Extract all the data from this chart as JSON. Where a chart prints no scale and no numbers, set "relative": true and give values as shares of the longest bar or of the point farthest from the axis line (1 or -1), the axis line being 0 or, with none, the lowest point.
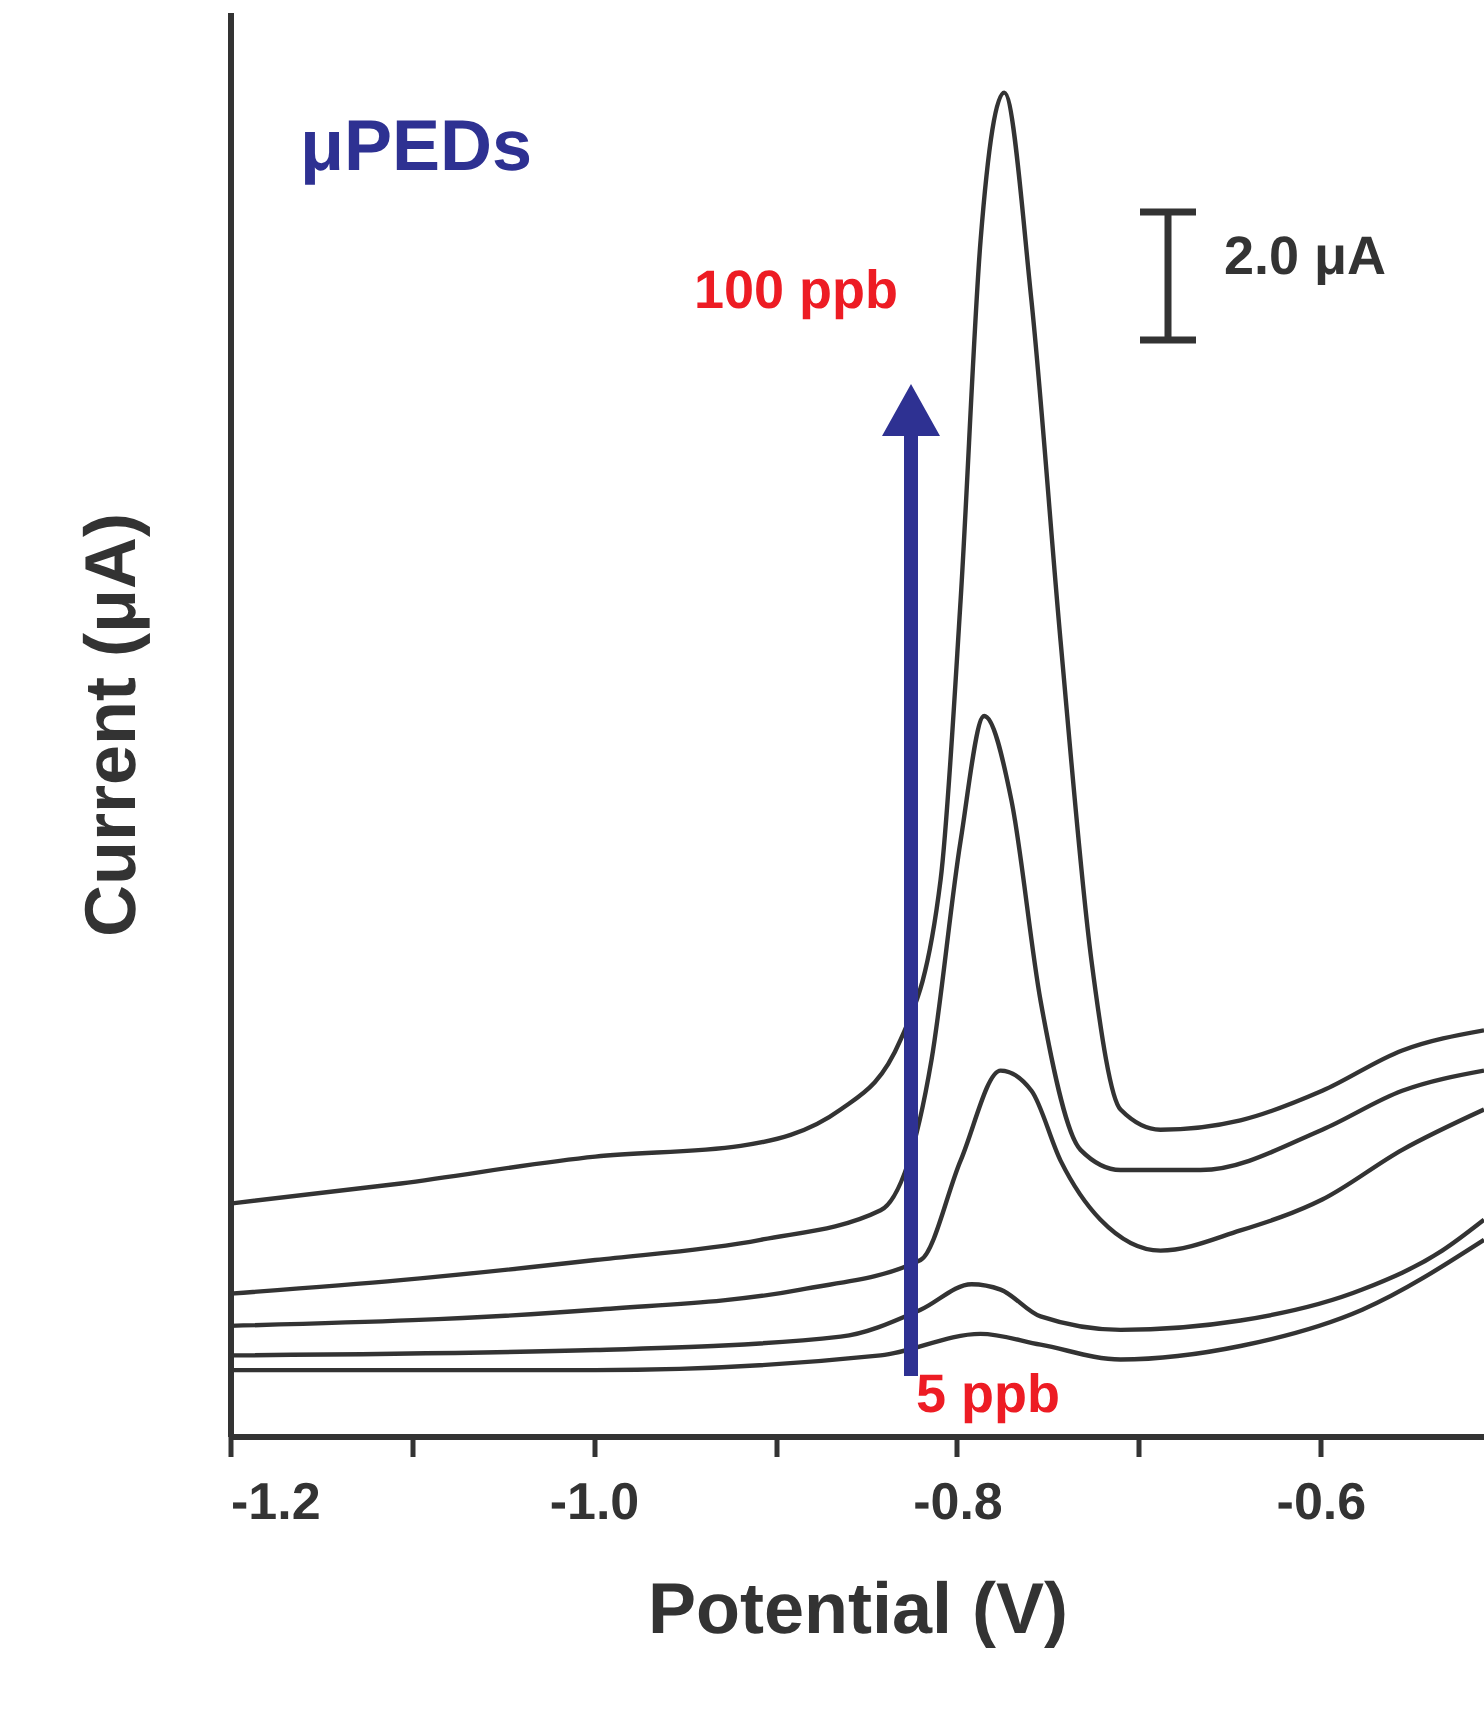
{
  "chart_data": {
    "type": "line",
    "relative": true,
    "xlabel": "Potential (V)",
    "ylabel": "Current (μA)",
    "xlim": [
      -1.2,
      -0.51
    ],
    "xticks": [
      -1.2,
      {
        "value": -1.1,
        "label": null
      },
      {
        "value": -1.0,
        "label": "-1.0"
      },
      {
        "value": -0.9,
        "label": null
      },
      -0.8,
      {
        "value": -0.7,
        "label": null
      },
      -0.6
    ],
    "grid": false,
    "annotations": [
      "μPEDs",
      "100 ppb",
      "5 ppb",
      "2.0 μA"
    ],
    "series": [
      {
        "color": "#333333",
        "x": [
          -1.2,
          -1.106,
          -0.999,
          -0.919,
          -0.864,
          -0.831,
          -0.809,
          -0.798,
          -0.787,
          -0.774,
          -0.759,
          -0.743,
          -0.726,
          -0.71,
          -0.688,
          -0.644,
          -0.599,
          -0.555,
          -0.51
        ],
        "values": [
          0.173,
          0.188,
          0.208,
          0.216,
          0.243,
          0.295,
          0.414,
          0.622,
          0.89,
          1,
          0.845,
          0.592,
          0.354,
          0.243,
          0.228,
          0.235,
          0.257,
          0.287,
          0.302
        ]
      },
      {
        "color": "#333333",
        "x": [
          -1.2,
          -1.106,
          -0.999,
          -0.908,
          -0.842,
          -0.814,
          -0.798,
          -0.785,
          -0.77,
          -0.754,
          -0.732,
          -0.71,
          -0.666,
          -0.599,
          -0.555,
          -0.51
        ],
        "values": [
          0.106,
          0.116,
          0.131,
          0.146,
          0.168,
          0.28,
          0.443,
          0.536,
          0.473,
          0.324,
          0.213,
          0.198,
          0.198,
          0.228,
          0.257,
          0.272
        ]
      },
      {
        "color": "#333333",
        "x": [
          -1.2,
          -0.999,
          -0.886,
          -0.82,
          -0.798,
          -0.776,
          -0.759,
          -0.743,
          -0.721,
          -0.688,
          -0.644,
          -0.599,
          -0.555,
          -0.51
        ],
        "values": [
          0.082,
          0.094,
          0.109,
          0.131,
          0.205,
          0.272,
          0.257,
          0.205,
          0.161,
          0.138,
          0.153,
          0.176,
          0.213,
          0.243
        ]
      },
      {
        "color": "#333333",
        "x": [
          -1.2,
          -0.999,
          -0.864,
          -0.82,
          -0.792,
          -0.776,
          -0.754,
          -0.71,
          -0.644,
          -0.577,
          -0.533,
          -0.51
        ],
        "values": [
          0.06,
          0.064,
          0.074,
          0.094,
          0.113,
          0.109,
          0.089,
          0.079,
          0.086,
          0.109,
          0.138,
          0.161
        ]
      },
      {
        "color": "#333333",
        "x": [
          -1.2,
          -0.999,
          -0.842,
          -0.787,
          -0.754,
          -0.71,
          -0.644,
          -0.577,
          -0.51
        ],
        "values": [
          0.049,
          0.049,
          0.06,
          0.076,
          0.068,
          0.057,
          0.067,
          0.094,
          0.146
        ]
      }
    ]
  }
}
